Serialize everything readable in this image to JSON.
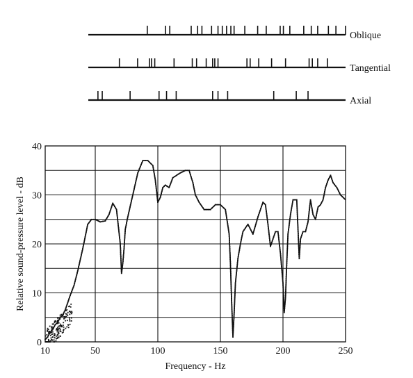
{
  "chart_data": [
    {
      "type": "scatter",
      "title": "",
      "description_note": "",
      "rows": [
        {
          "label": "Oblique",
          "x": [
            65,
            82,
            86,
            106,
            112,
            116,
            125,
            131,
            135,
            139,
            143,
            146,
            156,
            168,
            176,
            189,
            192,
            198,
            211,
            218,
            224,
            234,
            241,
            250
          ]
        },
        {
          "label": "Tangential",
          "x": [
            39,
            56,
            67,
            69,
            72,
            90,
            107,
            111,
            120,
            126,
            128,
            131,
            158,
            161,
            169,
            181,
            194,
            216,
            219,
            224,
            233
          ]
        },
        {
          "label": "Axial",
          "x": [
            19,
            23,
            49,
            76,
            83,
            92,
            126,
            131,
            140,
            183,
            204,
            215
          ]
        }
      ]
    },
    {
      "type": "line",
      "title": "",
      "xlabel": "Frequency - Hz",
      "ylabel": "Relative sound-pressure level - dB",
      "x_ticks": [
        "10",
        "50",
        "100",
        "150",
        "200",
        "250"
      ],
      "y_ticks": [
        "0",
        "10",
        "20",
        "30",
        "40"
      ],
      "xlim": [
        10,
        250
      ],
      "ylim": [
        0,
        40
      ],
      "grid": true,
      "series": [
        {
          "x": [
            10,
            12,
            14,
            16,
            18,
            20,
            22,
            24,
            26,
            28,
            30,
            33,
            36,
            40,
            44,
            47,
            50,
            54,
            58,
            61,
            64,
            67,
            70,
            71,
            72,
            73,
            74,
            76,
            80,
            84,
            88,
            92,
            96,
            98,
            100,
            102,
            104,
            106,
            109,
            112,
            115,
            118,
            122,
            125,
            128,
            130,
            133,
            137,
            142,
            146,
            150,
            154,
            157,
            158,
            159,
            160,
            161,
            162,
            164,
            166,
            168,
            172,
            176,
            180,
            184,
            186,
            188,
            190,
            192,
            194,
            196,
            198,
            200,
            201,
            202,
            203,
            204,
            206,
            208,
            211,
            212,
            213,
            214,
            216,
            218,
            220,
            222,
            224,
            226,
            228,
            230,
            232,
            234,
            236,
            238,
            240,
            243,
            246,
            250
          ],
          "y": [
            0.5,
            1,
            2,
            2.5,
            3.5,
            4,
            5,
            5.5,
            6.5,
            8,
            9.5,
            11.5,
            14.5,
            19,
            24,
            25,
            25,
            24.5,
            24.7,
            26,
            28.3,
            27,
            20,
            14,
            16,
            19,
            23,
            25.5,
            30,
            34.5,
            37,
            37,
            36,
            33,
            28.5,
            29.5,
            31.5,
            32,
            31.5,
            33.5,
            34,
            34.5,
            35,
            35,
            32.5,
            30,
            28.5,
            27,
            27,
            28,
            28,
            27,
            22,
            16,
            8,
            1,
            6,
            12,
            17,
            20,
            22.5,
            24,
            22,
            25.5,
            28.5,
            28,
            24,
            19.5,
            21,
            22.5,
            22.5,
            18,
            12,
            6,
            9,
            16,
            22,
            26,
            29,
            29,
            23,
            17,
            21,
            22.5,
            22.5,
            24.5,
            29,
            26,
            25,
            27.5,
            28,
            29,
            31.5,
            33,
            34,
            32.5,
            31.5,
            30,
            29
          ]
        }
      ]
    }
  ]
}
